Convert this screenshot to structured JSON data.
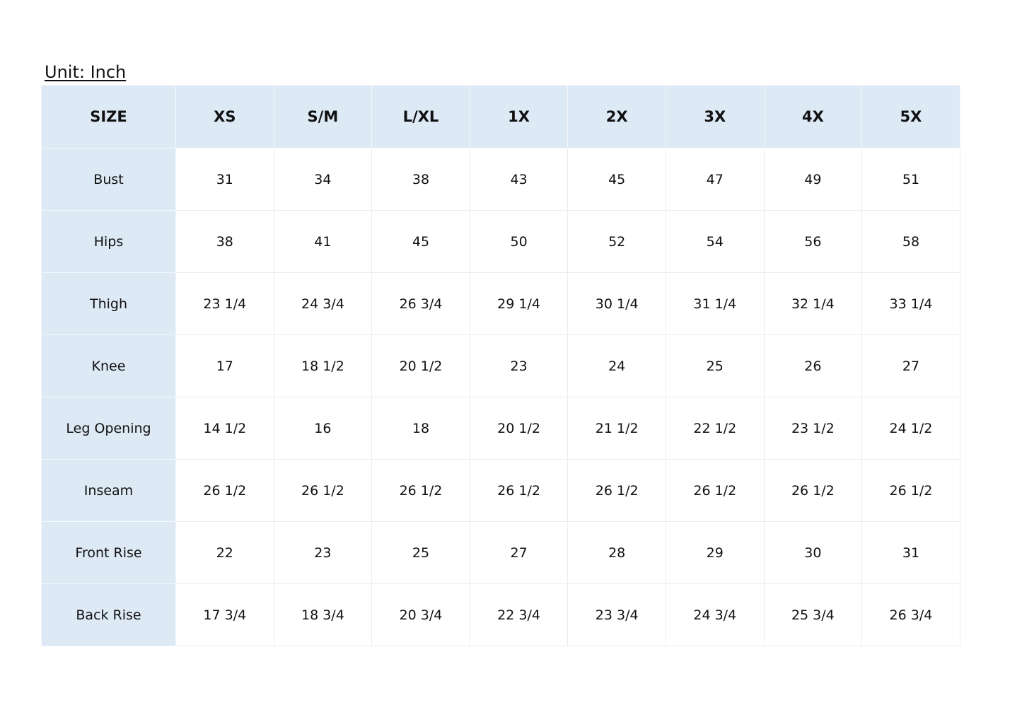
{
  "unit_label": "Unit: Inch",
  "header_color": "#dde9f5",
  "table": {
    "headers": [
      "SIZE",
      "XS",
      "S/M",
      "L/XL",
      "1X",
      "2X",
      "3X",
      "4X",
      "5X"
    ],
    "rows": [
      {
        "label": "Bust",
        "values": [
          "31",
          "34",
          "38",
          "43",
          "45",
          "47",
          "49",
          "51"
        ]
      },
      {
        "label": "Hips",
        "values": [
          "38",
          "41",
          "45",
          "50",
          "52",
          "54",
          "56",
          "58"
        ]
      },
      {
        "label": "Thigh",
        "values": [
          "23 1/4",
          "24 3/4",
          "26 3/4",
          "29 1/4",
          "30 1/4",
          "31 1/4",
          "32 1/4",
          "33 1/4"
        ]
      },
      {
        "label": "Knee",
        "values": [
          "17",
          "18 1/2",
          "20 1/2",
          "23",
          "24",
          "25",
          "26",
          "27"
        ]
      },
      {
        "label": "Leg Opening",
        "values": [
          "14 1/2",
          "16",
          "18",
          "20 1/2",
          "21 1/2",
          "22 1/2",
          "23 1/2",
          "24 1/2"
        ]
      },
      {
        "label": "Inseam",
        "values": [
          "26 1/2",
          "26 1/2",
          "26 1/2",
          "26 1/2",
          "26 1/2",
          "26 1/2",
          "26 1/2",
          "26 1/2"
        ]
      },
      {
        "label": "Front Rise",
        "values": [
          "22",
          "23",
          "25",
          "27",
          "28",
          "29",
          "30",
          "31"
        ]
      },
      {
        "label": "Back Rise",
        "values": [
          "17 3/4",
          "18 3/4",
          "20 3/4",
          "22 3/4",
          "23 3/4",
          "24 3/4",
          "25 3/4",
          "26 3/4"
        ]
      }
    ]
  }
}
